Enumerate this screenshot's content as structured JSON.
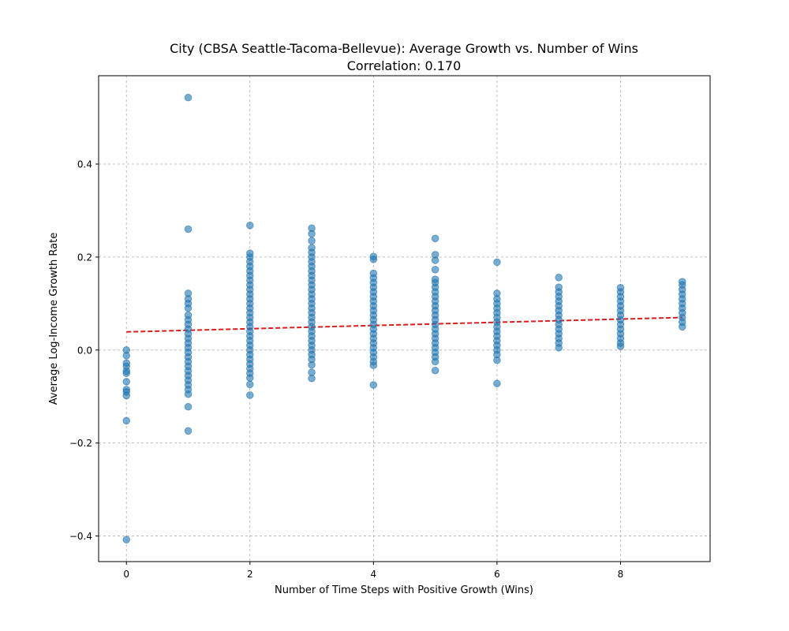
{
  "chart_data": {
    "type": "scatter",
    "title": "City (CBSA Seattle-Tacoma-Bellevue): Average Growth vs. Number of Wins",
    "subtitle": "Correlation: 0.170",
    "xlabel": "Number of Time Steps with Positive Growth (Wins)",
    "ylabel": "Average Log-Income Growth Rate",
    "xlim": [
      -0.45,
      9.45
    ],
    "ylim": [
      -0.455,
      0.59
    ],
    "xticks": [
      0,
      2,
      4,
      6,
      8
    ],
    "yticks": [
      -0.4,
      -0.2,
      0.0,
      0.2,
      0.4
    ],
    "xtick_labels": [
      "0",
      "2",
      "4",
      "6",
      "8"
    ],
    "ytick_labels": [
      "−0.4",
      "−0.2",
      "0.0",
      "0.2",
      "0.4"
    ],
    "grid": true,
    "point_color": "#1f77b4",
    "trend_color": "#e31a1c",
    "trend_line": {
      "x": [
        0,
        9
      ],
      "y": [
        0.039,
        0.07
      ]
    },
    "series": [
      {
        "points": [
          [
            0,
            0.0
          ],
          [
            0,
            -0.012
          ],
          [
            0,
            -0.028
          ],
          [
            0,
            -0.035
          ],
          [
            0,
            -0.045
          ],
          [
            0,
            -0.05
          ],
          [
            0,
            -0.068
          ],
          [
            0,
            -0.085
          ],
          [
            0,
            -0.09
          ],
          [
            0,
            -0.098
          ],
          [
            0,
            -0.152
          ],
          [
            0,
            -0.408
          ],
          [
            1,
            0.543
          ],
          [
            1,
            0.26
          ],
          [
            1,
            0.122
          ],
          [
            1,
            0.11
          ],
          [
            1,
            0.1
          ],
          [
            1,
            0.09
          ],
          [
            1,
            0.075
          ],
          [
            1,
            0.065
          ],
          [
            1,
            0.055
          ],
          [
            1,
            0.045
          ],
          [
            1,
            0.035
          ],
          [
            1,
            0.025
          ],
          [
            1,
            0.015
          ],
          [
            1,
            0.005
          ],
          [
            1,
            -0.005
          ],
          [
            1,
            -0.015
          ],
          [
            1,
            -0.025
          ],
          [
            1,
            -0.035
          ],
          [
            1,
            -0.045
          ],
          [
            1,
            -0.055
          ],
          [
            1,
            -0.065
          ],
          [
            1,
            -0.075
          ],
          [
            1,
            -0.085
          ],
          [
            1,
            -0.095
          ],
          [
            1,
            -0.122
          ],
          [
            1,
            -0.174
          ],
          [
            2,
            0.268
          ],
          [
            2,
            0.208
          ],
          [
            2,
            0.2
          ],
          [
            2,
            0.19
          ],
          [
            2,
            0.18
          ],
          [
            2,
            0.17
          ],
          [
            2,
            0.16
          ],
          [
            2,
            0.15
          ],
          [
            2,
            0.14
          ],
          [
            2,
            0.13
          ],
          [
            2,
            0.12
          ],
          [
            2,
            0.11
          ],
          [
            2,
            0.1
          ],
          [
            2,
            0.09
          ],
          [
            2,
            0.08
          ],
          [
            2,
            0.07
          ],
          [
            2,
            0.06
          ],
          [
            2,
            0.05
          ],
          [
            2,
            0.04
          ],
          [
            2,
            0.03
          ],
          [
            2,
            0.02
          ],
          [
            2,
            0.01
          ],
          [
            2,
            0.0
          ],
          [
            2,
            -0.01
          ],
          [
            2,
            -0.02
          ],
          [
            2,
            -0.03
          ],
          [
            2,
            -0.04
          ],
          [
            2,
            -0.05
          ],
          [
            2,
            -0.06
          ],
          [
            2,
            -0.074
          ],
          [
            2,
            -0.097
          ],
          [
            3,
            0.262
          ],
          [
            3,
            0.25
          ],
          [
            3,
            0.235
          ],
          [
            3,
            0.22
          ],
          [
            3,
            0.21
          ],
          [
            3,
            0.2
          ],
          [
            3,
            0.19
          ],
          [
            3,
            0.18
          ],
          [
            3,
            0.17
          ],
          [
            3,
            0.16
          ],
          [
            3,
            0.15
          ],
          [
            3,
            0.14
          ],
          [
            3,
            0.13
          ],
          [
            3,
            0.12
          ],
          [
            3,
            0.11
          ],
          [
            3,
            0.1
          ],
          [
            3,
            0.09
          ],
          [
            3,
            0.08
          ],
          [
            3,
            0.07
          ],
          [
            3,
            0.06
          ],
          [
            3,
            0.05
          ],
          [
            3,
            0.04
          ],
          [
            3,
            0.03
          ],
          [
            3,
            0.02
          ],
          [
            3,
            0.01
          ],
          [
            3,
            0.0
          ],
          [
            3,
            -0.01
          ],
          [
            3,
            -0.02
          ],
          [
            3,
            -0.032
          ],
          [
            3,
            -0.048
          ],
          [
            3,
            -0.061
          ],
          [
            4,
            0.201
          ],
          [
            4,
            0.195
          ],
          [
            4,
            0.165
          ],
          [
            4,
            0.155
          ],
          [
            4,
            0.145
          ],
          [
            4,
            0.135
          ],
          [
            4,
            0.125
          ],
          [
            4,
            0.115
          ],
          [
            4,
            0.105
          ],
          [
            4,
            0.095
          ],
          [
            4,
            0.085
          ],
          [
            4,
            0.075
          ],
          [
            4,
            0.065
          ],
          [
            4,
            0.055
          ],
          [
            4,
            0.045
          ],
          [
            4,
            0.035
          ],
          [
            4,
            0.025
          ],
          [
            4,
            0.015
          ],
          [
            4,
            0.005
          ],
          [
            4,
            -0.005
          ],
          [
            4,
            -0.015
          ],
          [
            4,
            -0.025
          ],
          [
            4,
            -0.033
          ],
          [
            4,
            -0.075
          ],
          [
            5,
            0.24
          ],
          [
            5,
            0.205
          ],
          [
            5,
            0.193
          ],
          [
            5,
            0.173
          ],
          [
            5,
            0.152
          ],
          [
            5,
            0.145
          ],
          [
            5,
            0.135
          ],
          [
            5,
            0.125
          ],
          [
            5,
            0.115
          ],
          [
            5,
            0.105
          ],
          [
            5,
            0.095
          ],
          [
            5,
            0.085
          ],
          [
            5,
            0.075
          ],
          [
            5,
            0.065
          ],
          [
            5,
            0.055
          ],
          [
            5,
            0.045
          ],
          [
            5,
            0.035
          ],
          [
            5,
            0.025
          ],
          [
            5,
            0.015
          ],
          [
            5,
            0.005
          ],
          [
            5,
            -0.005
          ],
          [
            5,
            -0.015
          ],
          [
            5,
            -0.025
          ],
          [
            5,
            -0.044
          ],
          [
            6,
            0.189
          ],
          [
            6,
            0.122
          ],
          [
            6,
            0.11
          ],
          [
            6,
            0.1
          ],
          [
            6,
            0.09
          ],
          [
            6,
            0.08
          ],
          [
            6,
            0.07
          ],
          [
            6,
            0.06
          ],
          [
            6,
            0.05
          ],
          [
            6,
            0.04
          ],
          [
            6,
            0.03
          ],
          [
            6,
            0.02
          ],
          [
            6,
            0.01
          ],
          [
            6,
            0.0
          ],
          [
            6,
            -0.01
          ],
          [
            6,
            -0.022
          ],
          [
            6,
            -0.072
          ],
          [
            7,
            0.156
          ],
          [
            7,
            0.135
          ],
          [
            7,
            0.125
          ],
          [
            7,
            0.115
          ],
          [
            7,
            0.105
          ],
          [
            7,
            0.095
          ],
          [
            7,
            0.085
          ],
          [
            7,
            0.075
          ],
          [
            7,
            0.065
          ],
          [
            7,
            0.055
          ],
          [
            7,
            0.045
          ],
          [
            7,
            0.035
          ],
          [
            7,
            0.025
          ],
          [
            7,
            0.015
          ],
          [
            7,
            0.005
          ],
          [
            8,
            0.134
          ],
          [
            8,
            0.125
          ],
          [
            8,
            0.115
          ],
          [
            8,
            0.105
          ],
          [
            8,
            0.095
          ],
          [
            8,
            0.085
          ],
          [
            8,
            0.075
          ],
          [
            8,
            0.065
          ],
          [
            8,
            0.055
          ],
          [
            8,
            0.045
          ],
          [
            8,
            0.035
          ],
          [
            8,
            0.025
          ],
          [
            8,
            0.015
          ],
          [
            8,
            0.008
          ],
          [
            9,
            0.147
          ],
          [
            9,
            0.14
          ],
          [
            9,
            0.13
          ],
          [
            9,
            0.12
          ],
          [
            9,
            0.11
          ],
          [
            9,
            0.1
          ],
          [
            9,
            0.09
          ],
          [
            9,
            0.08
          ],
          [
            9,
            0.07
          ],
          [
            9,
            0.06
          ],
          [
            9,
            0.05
          ]
        ]
      }
    ]
  }
}
